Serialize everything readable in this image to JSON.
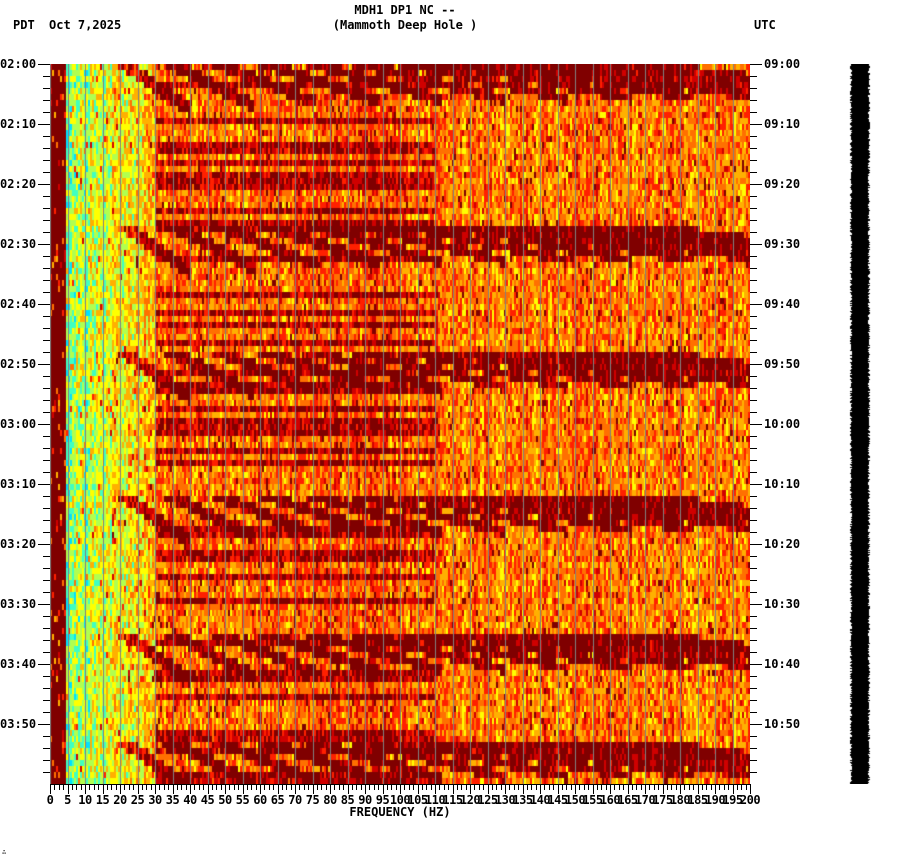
{
  "header": {
    "title_line1": "MDH1 DP1 NC --",
    "title_line2": "(Mammoth Deep Hole )",
    "left_timezone": "PDT",
    "date": "Oct 7,2025",
    "right_timezone": "UTC"
  },
  "footer": {
    "corner_mark": "∴"
  },
  "chart_data": {
    "type": "heatmap",
    "title": "MDH1 DP1 NC -- (Mammoth Deep Hole )",
    "subtitle": "Oct 7,2025",
    "xlabel": "FREQUENCY (HZ)",
    "ylabel_left": "PDT",
    "ylabel_right": "UTC",
    "xlim": [
      0,
      200
    ],
    "x_ticks": [
      0,
      5,
      10,
      15,
      20,
      25,
      30,
      35,
      40,
      45,
      50,
      55,
      60,
      65,
      70,
      75,
      80,
      85,
      90,
      95,
      100,
      105,
      110,
      115,
      120,
      125,
      130,
      135,
      140,
      145,
      150,
      155,
      160,
      165,
      170,
      175,
      180,
      185,
      190,
      195,
      200
    ],
    "x_minor_step": 1.25,
    "grid": {
      "vertical_every_hz": 5,
      "color": "#808080"
    },
    "y_ticks_left": [
      "02:00",
      "02:10",
      "02:20",
      "02:30",
      "02:40",
      "02:50",
      "03:00",
      "03:10",
      "03:20",
      "03:30",
      "03:40",
      "03:50"
    ],
    "y_ticks_right": [
      "09:00",
      "09:10",
      "09:20",
      "09:30",
      "09:40",
      "09:50",
      "10:00",
      "10:10",
      "10:20",
      "10:30",
      "10:40",
      "10:50"
    ],
    "y_minor_step_min": 2,
    "duration_minutes": 120,
    "colormap": [
      "#800000",
      "#d00000",
      "#ff2000",
      "#ff7000",
      "#ffb000",
      "#ffff00",
      "#b0ff50",
      "#40ffc0",
      "#00e0ff"
    ],
    "features": {
      "low_freq_band_hz": [
        0,
        5
      ],
      "low_freq_band_color": "#800000",
      "high_energy_band_hz": [
        5,
        30
      ],
      "repeating_chirp_period_min": 25,
      "chirp_start_minutes": [
        0,
        27,
        48,
        72,
        95,
        113
      ],
      "dominant_background": "orange-red noise above 100 Hz"
    }
  }
}
